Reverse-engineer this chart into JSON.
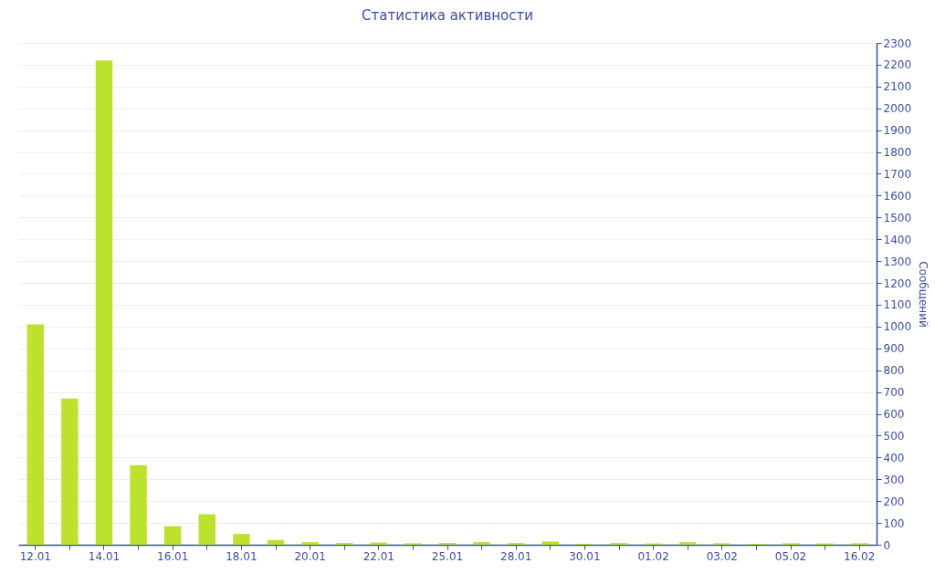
{
  "chart_data": {
    "type": "bar",
    "title": "Статистика активности",
    "ylabel": "Сообщений",
    "categories": [
      "12.01",
      null,
      "14.01",
      null,
      "16.01",
      null,
      "18.01",
      null,
      "20.01",
      null,
      "22.01",
      null,
      "25.01",
      null,
      "28.01",
      null,
      "30.01",
      null,
      "01.02",
      null,
      "03.02",
      null,
      "05.02",
      null,
      "16.02"
    ],
    "values": [
      1010,
      670,
      2220,
      365,
      85,
      140,
      50,
      22,
      12,
      8,
      10,
      7,
      8,
      12,
      8,
      15,
      4,
      8,
      6,
      12,
      7,
      4,
      7,
      6,
      7
    ],
    "color": "#bce12f",
    "ylim": [
      0,
      2300
    ],
    "yticks": [
      0,
      100,
      200,
      300,
      400,
      500,
      600,
      700,
      800,
      900,
      1000,
      1100,
      1200,
      1300,
      1400,
      1500,
      1600,
      1700,
      1800,
      1900,
      2000,
      2100,
      2200,
      2300
    ],
    "grid": "y"
  }
}
